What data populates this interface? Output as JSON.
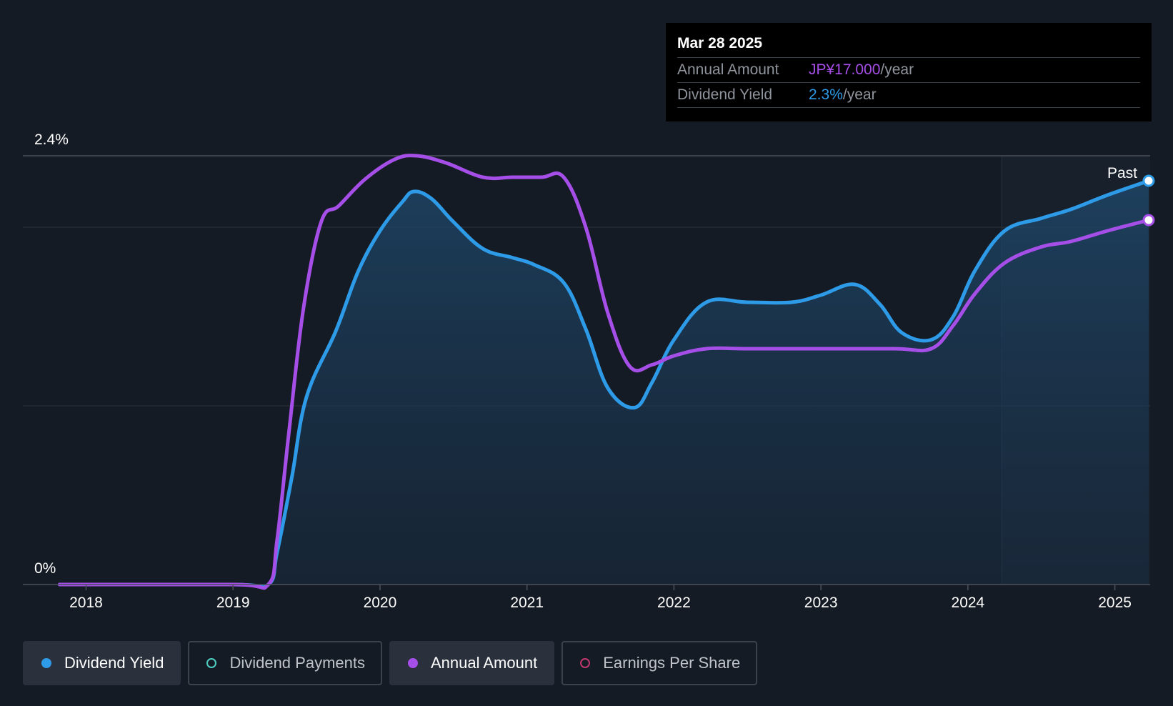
{
  "tooltip": {
    "date": "Mar 28 2025",
    "rows": [
      {
        "label": "Annual Amount",
        "value": "JP¥17.000",
        "unit": "/year",
        "color": "#a64ee8"
      },
      {
        "label": "Dividend Yield",
        "value": "2.3%",
        "unit": "/year",
        "color": "#2e9be8"
      }
    ]
  },
  "past_label": "Past",
  "legend": [
    {
      "label": "Dividend Yield",
      "color": "#2e9be8",
      "filled": true,
      "active": true
    },
    {
      "label": "Dividend Payments",
      "color": "#4ecdc4",
      "filled": false,
      "active": false
    },
    {
      "label": "Annual Amount",
      "color": "#a64ee8",
      "filled": true,
      "active": true
    },
    {
      "label": "Earnings Per Share",
      "color": "#c0386e",
      "filled": false,
      "active": false
    }
  ],
  "chart_data": {
    "type": "line",
    "y_tick_labels": [
      "0%",
      "2.4%"
    ],
    "ylim": [
      0,
      2.4
    ],
    "xlim": [
      2017.57,
      2025.24
    ],
    "x_ticks": [
      2018,
      2019,
      2020,
      2021,
      2022,
      2023,
      2024,
      2025
    ],
    "forecast_region_start": 2024.23,
    "grid": true,
    "series": [
      {
        "name": "Dividend Yield",
        "color": "#2e9be8",
        "area": true,
        "points": [
          [
            2017.82,
            0
          ],
          [
            2019.0,
            0
          ],
          [
            2019.24,
            0
          ],
          [
            2019.3,
            0.18
          ],
          [
            2019.4,
            0.6
          ],
          [
            2019.5,
            1.05
          ],
          [
            2019.7,
            1.42
          ],
          [
            2019.85,
            1.75
          ],
          [
            2020.0,
            1.98
          ],
          [
            2020.15,
            2.14
          ],
          [
            2020.23,
            2.2
          ],
          [
            2020.35,
            2.16
          ],
          [
            2020.5,
            2.03
          ],
          [
            2020.7,
            1.88
          ],
          [
            2020.9,
            1.83
          ],
          [
            2021.05,
            1.79
          ],
          [
            2021.25,
            1.69
          ],
          [
            2021.4,
            1.43
          ],
          [
            2021.55,
            1.1
          ],
          [
            2021.73,
            0.99
          ],
          [
            2021.85,
            1.13
          ],
          [
            2022.0,
            1.37
          ],
          [
            2022.22,
            1.58
          ],
          [
            2022.5,
            1.58
          ],
          [
            2022.8,
            1.58
          ],
          [
            2023.0,
            1.62
          ],
          [
            2023.23,
            1.68
          ],
          [
            2023.4,
            1.57
          ],
          [
            2023.55,
            1.41
          ],
          [
            2023.75,
            1.37
          ],
          [
            2023.9,
            1.5
          ],
          [
            2024.05,
            1.76
          ],
          [
            2024.25,
            1.98
          ],
          [
            2024.5,
            2.05
          ],
          [
            2024.7,
            2.1
          ],
          [
            2024.95,
            2.18
          ],
          [
            2025.23,
            2.26
          ]
        ]
      },
      {
        "name": "Annual Amount",
        "color": "#a64ee8",
        "area": false,
        "points": [
          [
            2017.82,
            0
          ],
          [
            2019.0,
            0
          ],
          [
            2019.24,
            0
          ],
          [
            2019.3,
            0.25
          ],
          [
            2019.38,
            0.85
          ],
          [
            2019.48,
            1.55
          ],
          [
            2019.6,
            2.03
          ],
          [
            2019.72,
            2.12
          ],
          [
            2019.9,
            2.27
          ],
          [
            2020.1,
            2.38
          ],
          [
            2020.25,
            2.4
          ],
          [
            2020.45,
            2.36
          ],
          [
            2020.7,
            2.28
          ],
          [
            2020.9,
            2.28
          ],
          [
            2021.1,
            2.28
          ],
          [
            2021.25,
            2.28
          ],
          [
            2021.4,
            2.0
          ],
          [
            2021.55,
            1.52
          ],
          [
            2021.7,
            1.22
          ],
          [
            2021.85,
            1.23
          ],
          [
            2022.0,
            1.28
          ],
          [
            2022.22,
            1.32
          ],
          [
            2022.5,
            1.32
          ],
          [
            2023.0,
            1.32
          ],
          [
            2023.5,
            1.32
          ],
          [
            2023.75,
            1.32
          ],
          [
            2023.9,
            1.45
          ],
          [
            2024.05,
            1.63
          ],
          [
            2024.25,
            1.8
          ],
          [
            2024.5,
            1.89
          ],
          [
            2024.7,
            1.92
          ],
          [
            2024.95,
            1.98
          ],
          [
            2025.23,
            2.04
          ]
        ]
      }
    ]
  }
}
